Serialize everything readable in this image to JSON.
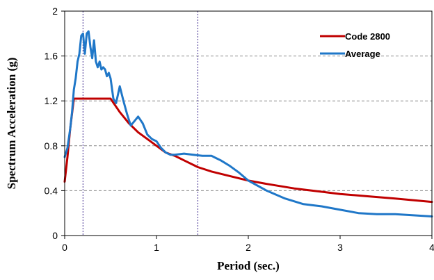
{
  "chart_data": {
    "type": "line",
    "title": "",
    "xlabel": "Period (sec.)",
    "ylabel": "Spectrum Acceleration (g)",
    "xlim": [
      0,
      4
    ],
    "ylim": [
      0,
      2
    ],
    "xticks": [
      "0",
      "1",
      "2",
      "3",
      "4"
    ],
    "yticks": [
      "0",
      "0.4",
      "0.8",
      "1.2",
      "1.6",
      "2"
    ],
    "grid": "horizontal dashed",
    "legend_position": "top-right",
    "reference_lines_x": [
      0.2,
      1.45
    ],
    "series": [
      {
        "name": "Code 2800",
        "color": "#c00000",
        "x": [
          0,
          0.03,
          0.06,
          0.1,
          0.2,
          0.3,
          0.4,
          0.5,
          0.6,
          0.7,
          0.8,
          0.9,
          1.0,
          1.1,
          1.2,
          1.3,
          1.45,
          1.6,
          1.8,
          2.0,
          2.2,
          2.5,
          2.8,
          3.0,
          3.3,
          3.6,
          4.0
        ],
        "y": [
          0.48,
          0.7,
          0.95,
          1.22,
          1.22,
          1.22,
          1.22,
          1.22,
          1.1,
          1.0,
          0.92,
          0.86,
          0.8,
          0.74,
          0.71,
          0.67,
          0.61,
          0.57,
          0.53,
          0.49,
          0.46,
          0.42,
          0.39,
          0.37,
          0.35,
          0.33,
          0.3
        ]
      },
      {
        "name": "Average",
        "color": "#1f77c8",
        "x": [
          0,
          0.03,
          0.06,
          0.08,
          0.1,
          0.12,
          0.14,
          0.16,
          0.18,
          0.2,
          0.22,
          0.24,
          0.26,
          0.28,
          0.3,
          0.32,
          0.34,
          0.36,
          0.38,
          0.4,
          0.42,
          0.44,
          0.46,
          0.48,
          0.5,
          0.53,
          0.56,
          0.6,
          0.64,
          0.68,
          0.72,
          0.76,
          0.8,
          0.85,
          0.9,
          0.95,
          1.0,
          1.05,
          1.1,
          1.15,
          1.2,
          1.3,
          1.4,
          1.5,
          1.6,
          1.65,
          1.7,
          1.8,
          1.9,
          2.0,
          2.2,
          2.4,
          2.6,
          2.8,
          3.0,
          3.2,
          3.4,
          3.6,
          3.8,
          4.0
        ],
        "y": [
          0.7,
          0.78,
          0.95,
          1.1,
          1.3,
          1.4,
          1.55,
          1.62,
          1.78,
          1.8,
          1.62,
          1.8,
          1.82,
          1.68,
          1.58,
          1.74,
          1.55,
          1.5,
          1.55,
          1.48,
          1.5,
          1.48,
          1.42,
          1.45,
          1.4,
          1.22,
          1.18,
          1.33,
          1.2,
          1.08,
          0.98,
          1.02,
          1.06,
          1.0,
          0.9,
          0.86,
          0.84,
          0.78,
          0.74,
          0.72,
          0.72,
          0.73,
          0.72,
          0.71,
          0.71,
          0.69,
          0.67,
          0.62,
          0.56,
          0.49,
          0.4,
          0.33,
          0.28,
          0.26,
          0.23,
          0.2,
          0.19,
          0.19,
          0.18,
          0.17
        ]
      }
    ]
  }
}
